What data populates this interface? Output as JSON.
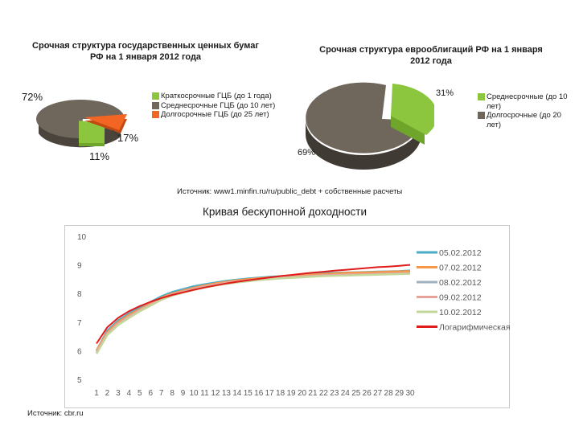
{
  "colors": {
    "green": "#8cc63f",
    "gray": "#6f665c",
    "orange": "#f26522",
    "line_blue": "#4bacc6",
    "line_orange": "#f79646",
    "line_gray": "#9fb0be",
    "line_pink": "#e6a39a",
    "line_olive": "#c4d79b",
    "line_red": "#e01b1b"
  },
  "left_chart": {
    "title": "Срочная структура государственных ценных бумаг РФ на 1 января 2012 года",
    "legend": [
      {
        "label": "Краткосрочные ГЦБ (до 1 года)",
        "color": "#8cc63f"
      },
      {
        "label": "Среднесрочные ГЦБ (до 10 лет)",
        "color": "#6f665c"
      },
      {
        "label": "Долгосрочные ГЦБ (до 25 лет)",
        "color": "#f26522"
      }
    ],
    "labels": {
      "gray": "72%",
      "orange": "17%",
      "green": "11%"
    }
  },
  "right_chart": {
    "title": "Срочная структура еврооблигаций РФ на 1 января 2012 года",
    "legend": [
      {
        "label": "Среднесрочные (до 10 лет)",
        "color": "#8cc63f"
      },
      {
        "label": "Долгосрочные (до 20 лет)",
        "color": "#6f665c"
      }
    ],
    "labels": {
      "green": "31%",
      "gray": "69%"
    }
  },
  "source_top": "Источник: www1.minfin.ru/ru/public_debt + собственные расчеты",
  "curve": {
    "title": "Кривая бескупонной доходности",
    "legend": [
      "05.02.2012",
      "07.02.2012",
      "08.02.2012",
      "09.02.2012",
      "10.02.2012",
      "Логарифмическая"
    ]
  },
  "source_bottom": "Источник: cbr.ru",
  "chart_data": [
    {
      "type": "pie",
      "title": "Срочная структура государственных ценных бумаг РФ на 1 января 2012 года",
      "categories": [
        "Краткосрочные ГЦБ (до 1 года)",
        "Среднесрочные ГЦБ (до 10 лет)",
        "Долгосрочные ГЦБ (до 25 лет)"
      ],
      "values": [
        11,
        72,
        17
      ],
      "legend": "right"
    },
    {
      "type": "pie",
      "title": "Срочная структура еврооблигаций РФ на 1 января 2012 года",
      "categories": [
        "Среднесрочные (до 10 лет)",
        "Долгосрочные (до 20 лет)"
      ],
      "values": [
        31,
        69
      ],
      "legend": "right"
    },
    {
      "type": "line",
      "title": "Кривая бескупонной доходности",
      "x": [
        1,
        2,
        3,
        4,
        5,
        6,
        7,
        8,
        9,
        10,
        11,
        12,
        13,
        14,
        15,
        16,
        17,
        18,
        19,
        20,
        21,
        22,
        23,
        24,
        25,
        26,
        27,
        28,
        29,
        30
      ],
      "ylim": [
        5,
        10
      ],
      "yticks": [
        5,
        6,
        7,
        8,
        9,
        10
      ],
      "grid": false,
      "legend": "right",
      "series": [
        {
          "name": "05.02.2012",
          "color": "#4bacc6",
          "values": [
            6.0,
            6.7,
            7.05,
            7.3,
            7.5,
            7.7,
            7.9,
            8.05,
            8.15,
            8.25,
            8.32,
            8.38,
            8.44,
            8.48,
            8.52,
            8.55,
            8.58,
            8.6,
            8.62,
            8.65,
            8.7,
            8.72,
            8.72,
            8.73,
            8.74,
            8.75,
            8.76,
            8.77,
            8.78,
            8.8
          ]
        },
        {
          "name": "07.02.2012",
          "color": "#f79646",
          "values": [
            6.0,
            6.65,
            7.0,
            7.25,
            7.45,
            7.65,
            7.85,
            8.0,
            8.1,
            8.2,
            8.28,
            8.35,
            8.41,
            8.46,
            8.5,
            8.53,
            8.56,
            8.59,
            8.61,
            8.63,
            8.66,
            8.68,
            8.7,
            8.72,
            8.73,
            8.74,
            8.75,
            8.76,
            8.77,
            8.78
          ]
        },
        {
          "name": "08.02.2012",
          "color": "#9fb0be",
          "values": [
            5.9,
            6.6,
            6.95,
            7.2,
            7.4,
            7.6,
            7.8,
            7.95,
            8.05,
            8.15,
            8.23,
            8.3,
            8.36,
            8.41,
            8.45,
            8.48,
            8.51,
            8.54,
            8.56,
            8.58,
            8.6,
            8.62,
            8.63,
            8.64,
            8.65,
            8.66,
            8.67,
            8.68,
            8.69,
            8.7
          ]
        },
        {
          "name": "09.02.2012",
          "color": "#e6a39a",
          "values": [
            5.95,
            6.6,
            6.95,
            7.2,
            7.42,
            7.62,
            7.82,
            7.97,
            8.07,
            8.17,
            8.25,
            8.32,
            8.38,
            8.43,
            8.47,
            8.5,
            8.53,
            8.56,
            8.58,
            8.6,
            8.62,
            8.64,
            8.65,
            8.66,
            8.67,
            8.68,
            8.69,
            8.7,
            8.71,
            8.72
          ]
        },
        {
          "name": "10.02.2012",
          "color": "#c4d79b",
          "values": [
            5.9,
            6.55,
            6.9,
            7.15,
            7.38,
            7.58,
            7.78,
            7.93,
            8.03,
            8.13,
            8.21,
            8.28,
            8.34,
            8.39,
            8.43,
            8.47,
            8.5,
            8.53,
            8.55,
            8.57,
            8.59,
            8.61,
            8.62,
            8.63,
            8.64,
            8.65,
            8.66,
            8.67,
            8.68,
            8.69
          ]
        },
        {
          "name": "Логарифмическая",
          "color": "#e01b1b",
          "values": [
            6.25,
            6.82,
            7.15,
            7.38,
            7.56,
            7.71,
            7.84,
            7.95,
            8.04,
            8.13,
            8.21,
            8.28,
            8.35,
            8.41,
            8.46,
            8.51,
            8.56,
            8.61,
            8.65,
            8.69,
            8.73,
            8.76,
            8.8,
            8.83,
            8.86,
            8.89,
            8.92,
            8.94,
            8.97,
            9.0
          ]
        }
      ]
    }
  ]
}
